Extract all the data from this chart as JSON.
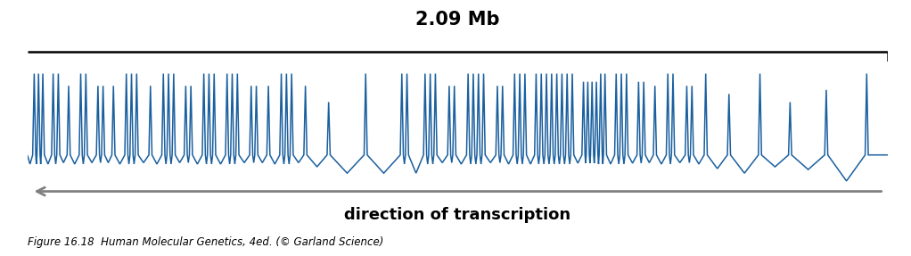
{
  "title": "2.09 Mb",
  "title_fontsize": 15,
  "direction_label": "direction of transcription",
  "direction_fontsize": 13,
  "caption": "Figure 16.18  Human Molecular Genetics, 4ed. (© Garland Science)",
  "caption_fontsize": 8.5,
  "bg_color": "#FAE5C0",
  "line_color": "#1A5F9E",
  "arrow_color": "#808080",
  "fig_bg": "#ffffff",
  "xlim": [
    0,
    1
  ],
  "baseline": 0.5,
  "exon_data": [
    [
      0.008,
      1.0
    ],
    [
      0.013,
      1.0
    ],
    [
      0.018,
      1.0
    ],
    [
      0.03,
      1.0
    ],
    [
      0.036,
      1.0
    ],
    [
      0.048,
      0.85
    ],
    [
      0.062,
      1.0
    ],
    [
      0.068,
      1.0
    ],
    [
      0.082,
      0.85
    ],
    [
      0.088,
      0.85
    ],
    [
      0.1,
      0.85
    ],
    [
      0.115,
      1.0
    ],
    [
      0.121,
      1.0
    ],
    [
      0.127,
      1.0
    ],
    [
      0.143,
      0.85
    ],
    [
      0.158,
      1.0
    ],
    [
      0.164,
      1.0
    ],
    [
      0.17,
      1.0
    ],
    [
      0.184,
      0.85
    ],
    [
      0.19,
      0.85
    ],
    [
      0.205,
      1.0
    ],
    [
      0.211,
      1.0
    ],
    [
      0.217,
      1.0
    ],
    [
      0.232,
      1.0
    ],
    [
      0.238,
      1.0
    ],
    [
      0.244,
      1.0
    ],
    [
      0.26,
      0.85
    ],
    [
      0.266,
      0.85
    ],
    [
      0.28,
      0.85
    ],
    [
      0.295,
      1.0
    ],
    [
      0.301,
      1.0
    ],
    [
      0.307,
      1.0
    ],
    [
      0.323,
      0.85
    ],
    [
      0.35,
      0.65
    ],
    [
      0.393,
      1.0
    ],
    [
      0.435,
      1.0
    ],
    [
      0.441,
      1.0
    ],
    [
      0.462,
      1.0
    ],
    [
      0.468,
      1.0
    ],
    [
      0.474,
      1.0
    ],
    [
      0.49,
      0.85
    ],
    [
      0.496,
      0.85
    ],
    [
      0.512,
      1.0
    ],
    [
      0.518,
      1.0
    ],
    [
      0.524,
      1.0
    ],
    [
      0.53,
      1.0
    ],
    [
      0.546,
      0.85
    ],
    [
      0.552,
      0.85
    ],
    [
      0.566,
      1.0
    ],
    [
      0.572,
      1.0
    ],
    [
      0.578,
      1.0
    ],
    [
      0.591,
      1.0
    ],
    [
      0.597,
      1.0
    ],
    [
      0.603,
      1.0
    ],
    [
      0.609,
      1.0
    ],
    [
      0.615,
      1.0
    ],
    [
      0.621,
      1.0
    ],
    [
      0.627,
      1.0
    ],
    [
      0.633,
      1.0
    ],
    [
      0.646,
      0.9
    ],
    [
      0.651,
      0.9
    ],
    [
      0.656,
      0.9
    ],
    [
      0.661,
      0.9
    ],
    [
      0.666,
      1.0
    ],
    [
      0.671,
      1.0
    ],
    [
      0.684,
      1.0
    ],
    [
      0.69,
      1.0
    ],
    [
      0.696,
      1.0
    ],
    [
      0.71,
      0.9
    ],
    [
      0.716,
      0.9
    ],
    [
      0.729,
      0.85
    ],
    [
      0.744,
      1.0
    ],
    [
      0.75,
      1.0
    ],
    [
      0.766,
      0.85
    ],
    [
      0.772,
      0.85
    ],
    [
      0.788,
      1.0
    ],
    [
      0.815,
      0.75
    ],
    [
      0.851,
      1.0
    ],
    [
      0.886,
      0.65
    ],
    [
      0.928,
      0.8
    ],
    [
      0.975,
      1.0
    ]
  ],
  "intron_valley_depth": -0.32,
  "spike_halfwidth": 0.0018
}
